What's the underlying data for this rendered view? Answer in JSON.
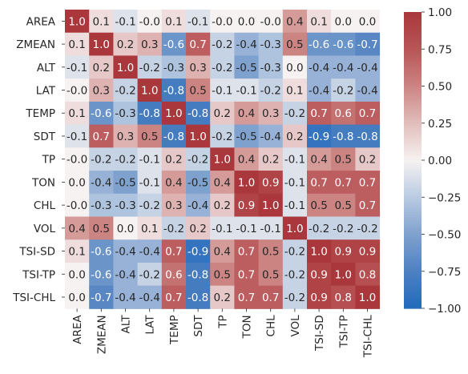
{
  "chart_data": {
    "type": "heatmap",
    "title": "",
    "xlabel": "",
    "ylabel": "",
    "variables": [
      "AREA",
      "ZMEAN",
      "ALT",
      "LAT",
      "TEMP",
      "SDT",
      "TP",
      "TON",
      "CHL",
      "VOL",
      "TSI-SD",
      "TSI-TP",
      "TSI-CHL"
    ],
    "matrix": [
      [
        "1.0",
        "0.1",
        "-0.1",
        "-0.0",
        "0.1",
        "-0.1",
        "-0.0",
        "0.0",
        "-0.0",
        "0.4",
        "0.1",
        "0.0",
        "0.0"
      ],
      [
        "0.1",
        "1.0",
        "0.2",
        "0.3",
        "-0.6",
        "0.7",
        "-0.2",
        "-0.4",
        "-0.3",
        "0.5",
        "-0.6",
        "-0.6",
        "-0.7"
      ],
      [
        "-0.1",
        "0.2",
        "1.0",
        "-0.2",
        "-0.3",
        "0.3",
        "-0.2",
        "-0.5",
        "-0.3",
        "0.0",
        "-0.4",
        "-0.4",
        "-0.4"
      ],
      [
        "-0.0",
        "0.3",
        "-0.2",
        "1.0",
        "-0.8",
        "0.5",
        "-0.1",
        "-0.1",
        "-0.2",
        "0.1",
        "-0.4",
        "-0.2",
        "-0.4"
      ],
      [
        "0.1",
        "-0.6",
        "-0.3",
        "-0.8",
        "1.0",
        "-0.8",
        "0.2",
        "0.4",
        "0.3",
        "-0.2",
        "0.7",
        "0.6",
        "0.7"
      ],
      [
        "-0.1",
        "0.7",
        "0.3",
        "0.5",
        "-0.8",
        "1.0",
        "-0.2",
        "-0.5",
        "-0.4",
        "0.2",
        "-0.9",
        "-0.8",
        "-0.8"
      ],
      [
        "-0.0",
        "-0.2",
        "-0.2",
        "-0.1",
        "0.2",
        "-0.2",
        "1.0",
        "0.4",
        "0.2",
        "-0.1",
        "0.4",
        "0.5",
        "0.2"
      ],
      [
        "0.0",
        "-0.4",
        "-0.5",
        "-0.1",
        "0.4",
        "-0.5",
        "0.4",
        "1.0",
        "0.9",
        "-0.1",
        "0.7",
        "0.7",
        "0.7"
      ],
      [
        "-0.0",
        "-0.3",
        "-0.3",
        "-0.2",
        "0.3",
        "-0.4",
        "0.2",
        "0.9",
        "1.0",
        "-0.1",
        "0.5",
        "0.5",
        "0.7"
      ],
      [
        "0.4",
        "0.5",
        "0.0",
        "0.1",
        "-0.2",
        "0.2",
        "-0.1",
        "-0.1",
        "-0.1",
        "1.0",
        "-0.2",
        "-0.2",
        "-0.2"
      ],
      [
        "0.1",
        "-0.6",
        "-0.4",
        "-0.4",
        "0.7",
        "-0.9",
        "0.4",
        "0.7",
        "0.5",
        "-0.2",
        "1.0",
        "0.9",
        "0.9"
      ],
      [
        "0.0",
        "-0.6",
        "-0.4",
        "-0.2",
        "0.6",
        "-0.8",
        "0.5",
        "0.7",
        "0.5",
        "-0.2",
        "0.9",
        "1.0",
        "0.8"
      ],
      [
        "0.0",
        "-0.7",
        "-0.4",
        "-0.4",
        "0.7",
        "-0.8",
        "0.2",
        "0.7",
        "0.7",
        "-0.2",
        "0.9",
        "0.8",
        "1.0"
      ]
    ],
    "vmin": -1.0,
    "vmax": 1.0,
    "colormap": "vlag",
    "colorbar_ticks": [
      "1.00",
      "0.75",
      "0.50",
      "0.25",
      "0.00",
      "−0.25",
      "−0.50",
      "−0.75",
      "−1.00"
    ],
    "colors": {
      "low": "#2369bd",
      "mid": "#f6f2f1",
      "high": "#a9373b"
    }
  }
}
